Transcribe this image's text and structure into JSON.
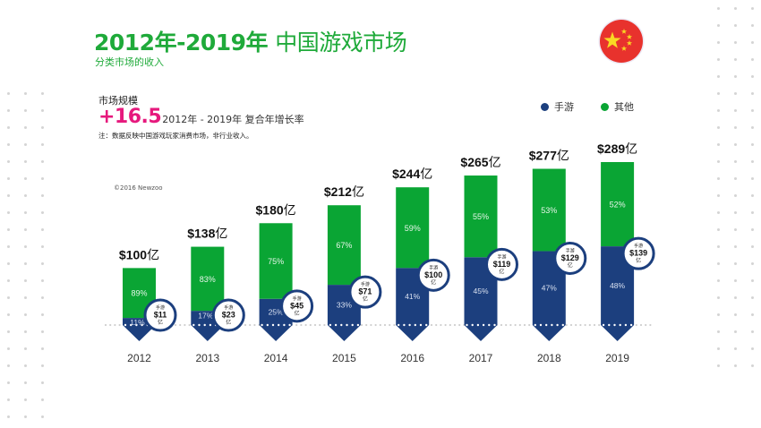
{
  "header": {
    "title_bold": "2012年-2019年",
    "title_rest": "中国游戏市场",
    "subtitle": "分类市场的收入",
    "flag_icon": "china-flag-icon"
  },
  "summary": {
    "label": "市场规模",
    "cagr_value": "+16.5",
    "cagr_text": "2012年 - 2019年 复合年增长率",
    "note": "注：数据反映中国游戏玩家消费市场，非行业收入。",
    "copyright": "©2016 Newzoo"
  },
  "colors": {
    "title_green": "#1faa3a",
    "mobile": "#1c3f7e",
    "other": "#0aa534",
    "accent": "#e6197d"
  },
  "chart_data": {
    "type": "bar",
    "stacked": true,
    "title": "2012年-2019年 中国游戏市场",
    "subtitle": "分类市场的收入",
    "xlabel": "",
    "ylabel": "",
    "unit": "亿",
    "categories": [
      "2012",
      "2013",
      "2014",
      "2015",
      "2016",
      "2017",
      "2018",
      "2019"
    ],
    "totals": [
      100,
      138,
      180,
      212,
      244,
      265,
      277,
      289
    ],
    "total_labels": [
      "$100",
      "$138",
      "$180",
      "$212",
      "$244",
      "$265",
      "$277",
      "$289"
    ],
    "total_suffix": "亿",
    "series": [
      {
        "name": "手游",
        "color": "#1c3f7e",
        "percent": [
          11,
          17,
          25,
          33,
          41,
          45,
          47,
          48
        ],
        "percent_labels": [
          "11%",
          "17%",
          "25%",
          "33%",
          "41%",
          "45%",
          "47%",
          "48%"
        ],
        "values": [
          11,
          23,
          45,
          71,
          100,
          119,
          129,
          139
        ],
        "value_labels": [
          "$11",
          "$23",
          "$45",
          "$71",
          "$100",
          "$119",
          "$129",
          "$139"
        ]
      },
      {
        "name": "其他",
        "color": "#0aa534",
        "percent": [
          89,
          83,
          75,
          67,
          59,
          55,
          53,
          52
        ],
        "percent_labels": [
          "89%",
          "83%",
          "75%",
          "67%",
          "59%",
          "55%",
          "53%",
          "52%"
        ]
      }
    ],
    "badge_title": "手游",
    "badge_unit": "亿",
    "ylim": [
      0,
      300
    ],
    "grid": false,
    "legend_position": "top-right"
  }
}
